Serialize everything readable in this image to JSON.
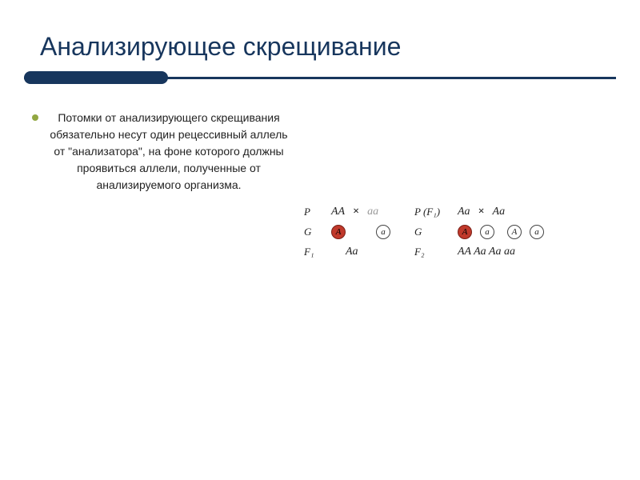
{
  "title": "Анализирующее скрещивание",
  "body": "Потомки от анализирующего скрещивания обязательно несут один рецессивный аллель от \"анализатора\", на фоне которого должны проявиться аллели, полученные от анализируемого организма.",
  "colors": {
    "brand": "#17365d",
    "bullet": "#92a741",
    "gamete_red": "#c0392b"
  },
  "cross1": {
    "rowP_label": "P",
    "rowP_left": "AA",
    "rowP_op": "×",
    "rowP_right": "aa",
    "rowG_label": "G",
    "gametes": [
      {
        "text": "A",
        "red": true
      },
      {
        "text": "a",
        "red": false
      }
    ],
    "rowF_label": "F₁",
    "rowF_val": "Aa"
  },
  "cross2": {
    "rowP_label": "P (F₁)",
    "rowP_left": "Aa",
    "rowP_op": "×",
    "rowP_right": "Aa",
    "rowG_label": "G",
    "gametes": [
      {
        "text": "A",
        "red": true
      },
      {
        "text": "a",
        "red": false
      },
      {
        "text": "A",
        "red": false
      },
      {
        "text": "a",
        "red": false
      }
    ],
    "rowF_label": "F₂",
    "rowF_val": "AA  Aa  Aa  aa"
  }
}
